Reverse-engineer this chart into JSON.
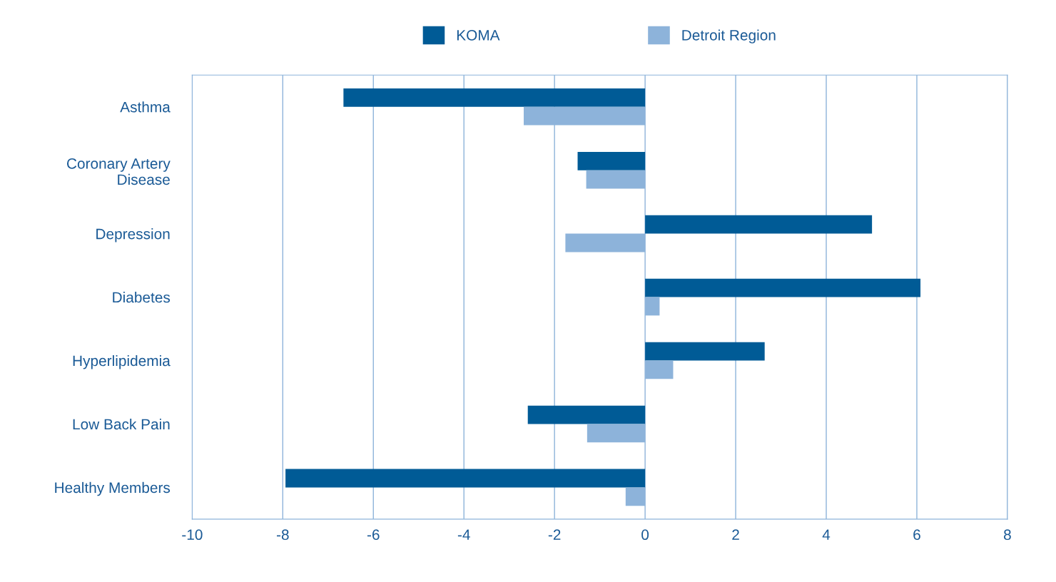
{
  "chart_data": {
    "type": "bar",
    "orientation": "horizontal",
    "categories": [
      "Asthma",
      "Coronary Artery\nDisease",
      "Depression",
      "Diabetes",
      "Hyperlipidemia",
      "Low Back Pain",
      "Healthy Members"
    ],
    "series": [
      {
        "name": "KOMA",
        "color": "#005b96",
        "values": [
          -6.66,
          -1.49,
          5.01,
          6.08,
          2.64,
          -2.59,
          -7.94
        ]
      },
      {
        "name": "Detroit Region",
        "color": "#8db3da",
        "values": [
          -2.68,
          -1.3,
          -1.76,
          0.32,
          0.62,
          -1.28,
          -0.43
        ]
      }
    ],
    "xlim": [
      -10,
      8
    ],
    "xticks": [
      -10,
      -8,
      -6,
      -4,
      -2,
      0,
      2,
      4,
      6,
      8
    ],
    "grid": "x",
    "legend": "top"
  }
}
